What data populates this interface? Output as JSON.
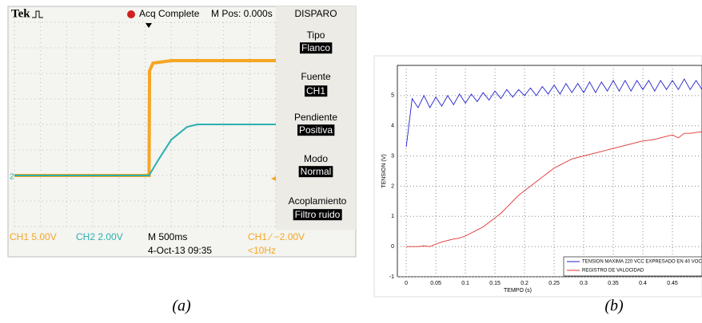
{
  "chart_data": [
    {
      "type": "scope",
      "annotations": [
        "Tek",
        "Acq Complete",
        "M Pos: 0.000s",
        "DISPARO",
        "Tipo",
        "Flanco",
        "Fuente",
        "CH1",
        "Pendiente",
        "Positiva",
        "Modo",
        "Normal",
        "Acoplamiento",
        "Filtro ruido",
        "CH1  5.00V",
        "CH2  2.00V",
        "M 500ms",
        "CH1 ∕ −2.00V",
        "4-Oct-13 09:35",
        "<10Hz",
        "2"
      ],
      "xlim": [
        0,
        10
      ],
      "ylim": [
        -4,
        4
      ],
      "series": [
        {
          "color": "#f5a623",
          "x": [
            0,
            5.15,
            5.17,
            5.3,
            6,
            7,
            8,
            9,
            10
          ],
          "values": [
            -2,
            -2,
            2.1,
            2.4,
            2.5,
            2.5,
            2.5,
            2.5,
            2.5
          ]
        },
        {
          "color": "#2ab0b0",
          "x": [
            0,
            5.15,
            5.5,
            6,
            6.6,
            7,
            8,
            9,
            10
          ],
          "values": [
            -2,
            -2,
            -1.4,
            -0.6,
            -0.1,
            0,
            0,
            0,
            0
          ]
        }
      ]
    },
    {
      "type": "line",
      "xlabel": "TEMPO (s)",
      "ylabel": "TENSION (V)",
      "xlim": [
        -0.015,
        0.5
      ],
      "ylim": [
        -1,
        6
      ],
      "xticks": [
        0,
        0.05,
        0.1,
        0.15,
        0.2,
        0.25,
        0.3,
        0.35,
        0.4,
        0.45
      ],
      "yticks": [
        -1,
        0,
        1,
        2,
        3,
        4,
        5
      ],
      "grid": true,
      "legend": "lower right",
      "x": [
        0,
        0.01,
        0.02,
        0.03,
        0.04,
        0.05,
        0.06,
        0.07,
        0.08,
        0.09,
        0.1,
        0.11,
        0.12,
        0.13,
        0.14,
        0.15,
        0.16,
        0.17,
        0.18,
        0.19,
        0.2,
        0.21,
        0.22,
        0.23,
        0.24,
        0.25,
        0.26,
        0.27,
        0.28,
        0.29,
        0.3,
        0.31,
        0.32,
        0.33,
        0.34,
        0.35,
        0.36,
        0.37,
        0.38,
        0.39,
        0.4,
        0.41,
        0.42,
        0.43,
        0.44,
        0.45,
        0.46,
        0.47,
        0.48,
        0.49,
        0.5
      ],
      "series": [
        {
          "name": "TENSION MAXIMA 220 VCC EXPRESADO EN 40 VOC",
          "color": "#2020d0",
          "values": [
            3.3,
            4.9,
            4.6,
            5.0,
            4.6,
            4.95,
            4.65,
            5.0,
            4.7,
            5.05,
            4.75,
            5.05,
            4.8,
            5.1,
            4.85,
            5.15,
            4.9,
            5.2,
            4.95,
            5.2,
            5.0,
            5.25,
            5.0,
            5.3,
            5.05,
            5.35,
            5.05,
            5.4,
            5.1,
            5.4,
            5.1,
            5.45,
            5.1,
            5.45,
            5.15,
            5.5,
            5.15,
            5.5,
            5.15,
            5.5,
            5.2,
            5.5,
            5.15,
            5.5,
            5.2,
            5.5,
            5.2,
            5.55,
            5.2,
            5.5,
            5.2
          ]
        },
        {
          "name": "REGISTRO DE VALOCIDAD",
          "color": "#e03030",
          "values": [
            0.0,
            0.0,
            0.0,
            0.02,
            0.0,
            0.08,
            0.15,
            0.2,
            0.25,
            0.28,
            0.35,
            0.45,
            0.55,
            0.65,
            0.8,
            0.95,
            1.1,
            1.3,
            1.5,
            1.7,
            1.85,
            2.0,
            2.15,
            2.3,
            2.45,
            2.6,
            2.7,
            2.8,
            2.9,
            2.95,
            3.0,
            3.05,
            3.1,
            3.15,
            3.2,
            3.25,
            3.3,
            3.35,
            3.4,
            3.45,
            3.5,
            3.52,
            3.55,
            3.6,
            3.65,
            3.7,
            3.6,
            3.75,
            3.75,
            3.78,
            3.8
          ]
        }
      ]
    }
  ],
  "captions": [
    "(a)",
    "(b)"
  ]
}
